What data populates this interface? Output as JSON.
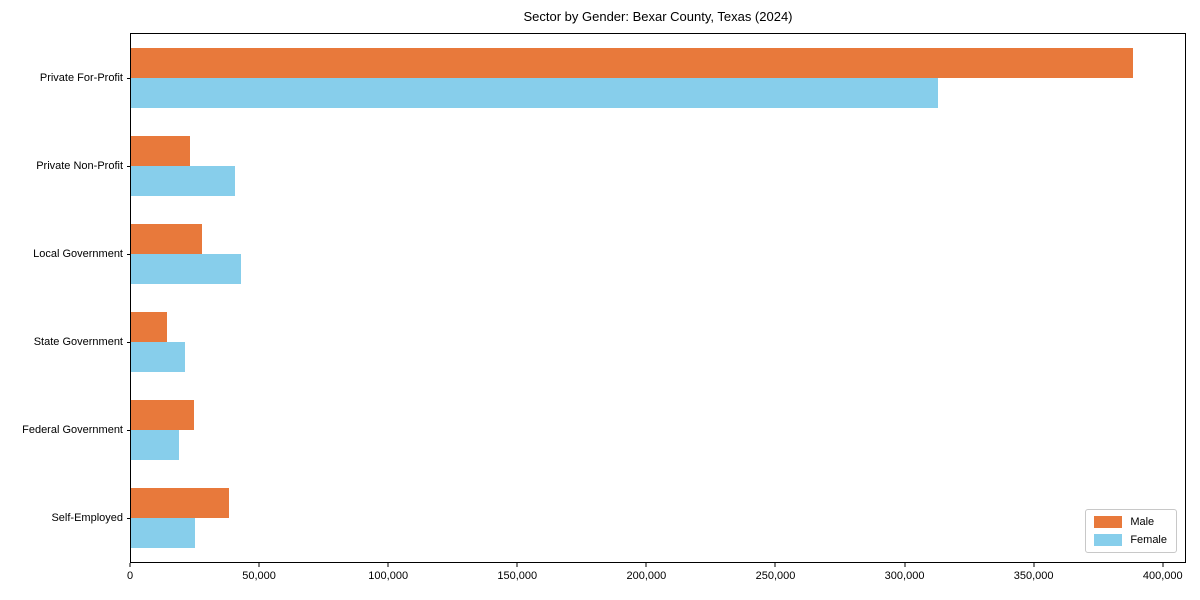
{
  "title": "Sector by Gender: Bexar County, Texas (2024)",
  "colors": {
    "male": "#E8793B",
    "female": "#87CEEB",
    "axis": "#000000",
    "legend_border": "#c8c8c8",
    "background": "#ffffff"
  },
  "chart_data": {
    "type": "bar",
    "orientation": "horizontal",
    "title": "Sector by Gender: Bexar County, Texas (2024)",
    "categories": [
      "Private For-Profit",
      "Private Non-Profit",
      "Local Government",
      "State Government",
      "Federal Government",
      "Self-Employed"
    ],
    "series": [
      {
        "name": "Male",
        "color": "#E8793B",
        "values": [
          389000,
          23000,
          27500,
          14000,
          24500,
          38000
        ]
      },
      {
        "name": "Female",
        "color": "#87CEEB",
        "values": [
          313000,
          40500,
          42500,
          21000,
          18500,
          25000
        ]
      }
    ],
    "xlabel": "",
    "ylabel": "",
    "xlim": [
      0,
      409000
    ],
    "x_ticks": [
      0,
      50000,
      100000,
      150000,
      200000,
      250000,
      300000,
      350000,
      400000
    ],
    "x_tick_labels": [
      "0",
      "50,000",
      "100,000",
      "150,000",
      "200,000",
      "250,000",
      "300,000",
      "350,000",
      "400,000"
    ],
    "grid": false,
    "legend": {
      "position": "lower right",
      "entries": [
        "Male",
        "Female"
      ]
    }
  }
}
